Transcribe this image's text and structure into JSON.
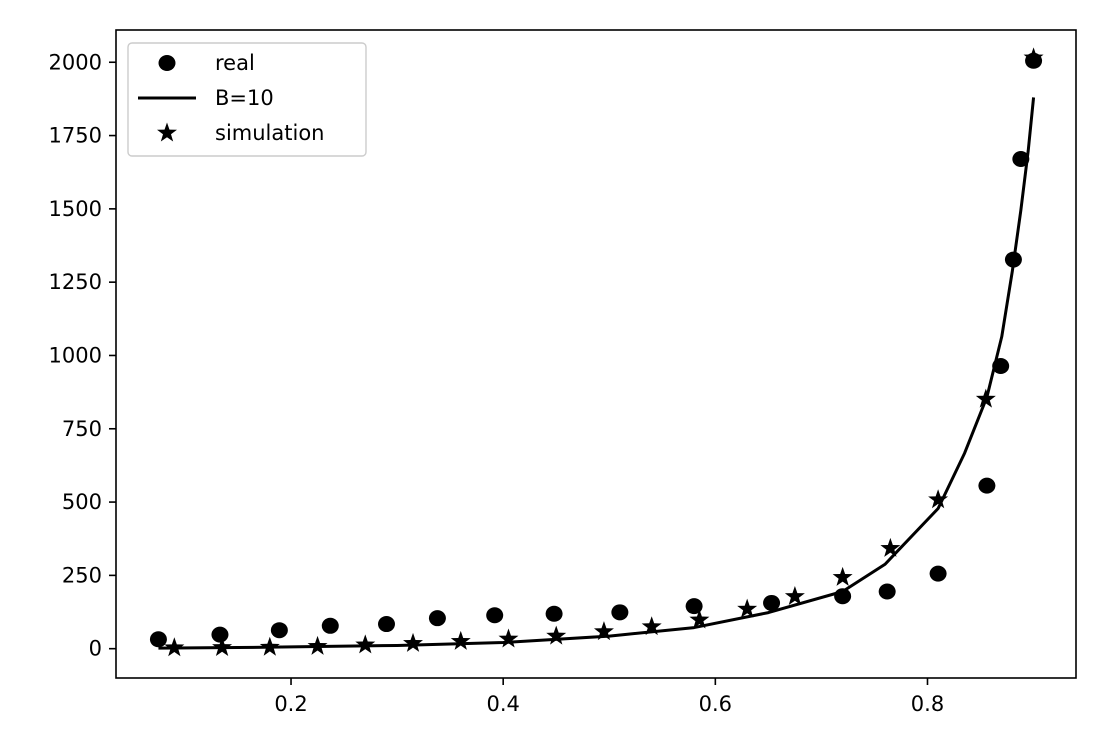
{
  "chart_data": {
    "type": "scatter",
    "title": "",
    "xlabel": "",
    "ylabel": "",
    "xlim": [
      0.035,
      0.94
    ],
    "ylim": [
      -100,
      2110
    ],
    "xticks": [
      0.2,
      0.4,
      0.6,
      0.8
    ],
    "yticks": [
      0,
      250,
      500,
      750,
      1000,
      1250,
      1500,
      1750,
      2000
    ],
    "xtick_labels": [
      "0.2",
      "0.4",
      "0.6",
      "0.8"
    ],
    "ytick_labels": [
      "0",
      "250",
      "500",
      "750",
      "1000",
      "1250",
      "1500",
      "1750",
      "2000"
    ],
    "grid": false,
    "legend_position": "top-left",
    "series": [
      {
        "name": "real",
        "style": "circle",
        "color": "#000000",
        "x": [
          0.075,
          0.133,
          0.189,
          0.237,
          0.29,
          0.338,
          0.392,
          0.448,
          0.51,
          0.58,
          0.653,
          0.72,
          0.762,
          0.81,
          0.856,
          0.869,
          0.881,
          0.888,
          0.9
        ],
        "y": [
          32,
          48,
          63,
          78,
          84,
          104,
          114,
          119,
          124,
          145,
          156,
          179,
          195,
          256,
          556,
          964,
          1327,
          1670,
          2005
        ]
      },
      {
        "name": "B=10",
        "style": "line",
        "color": "#000000",
        "x": [
          0.075,
          0.15,
          0.2,
          0.3,
          0.4,
          0.5,
          0.58,
          0.65,
          0.72,
          0.76,
          0.81,
          0.835,
          0.856,
          0.87,
          0.88,
          0.888,
          0.895,
          0.9
        ],
        "y": [
          2,
          4,
          6,
          11,
          21,
          43,
          72,
          123,
          195,
          288,
          478,
          667,
          858,
          1064,
          1288,
          1495,
          1700,
          1880
        ]
      },
      {
        "name": "simulation",
        "style": "star",
        "color": "#000000",
        "x": [
          0.09,
          0.135,
          0.18,
          0.225,
          0.27,
          0.315,
          0.36,
          0.405,
          0.45,
          0.495,
          0.54,
          0.585,
          0.63,
          0.675,
          0.72,
          0.765,
          0.81,
          0.855,
          0.9
        ],
        "y": [
          3,
          4,
          5,
          8,
          13,
          18,
          25,
          33,
          43,
          58,
          75,
          98,
          135,
          178,
          243,
          342,
          508,
          851,
          2015
        ]
      }
    ]
  }
}
